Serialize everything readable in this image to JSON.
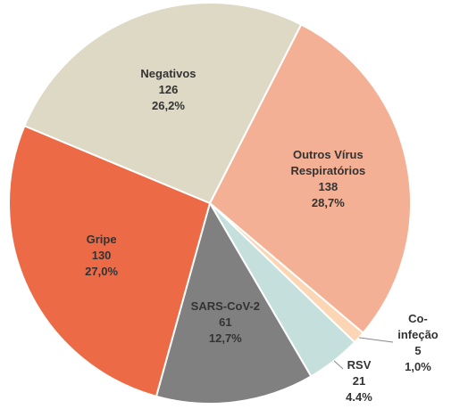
{
  "chart_data": {
    "type": "pie",
    "categories": [
      "Outros Vírus Respiratórios",
      "Co-infeção",
      "RSV",
      "SARS-CoV-2",
      "Gripe",
      "Negativos"
    ],
    "counts": [
      138,
      5,
      21,
      61,
      130,
      126
    ],
    "values": [
      28.7,
      1.0,
      4.4,
      12.7,
      27.0,
      26.2
    ],
    "value_labels": [
      "28,7%",
      "1,0%",
      "4.4%",
      "12,7%",
      "27,0%",
      "26,2%"
    ],
    "colors": [
      "#f4b094",
      "#fcd5b4",
      "#c5e0dc",
      "#808080",
      "#ed6a47",
      "#ddd9c4"
    ]
  }
}
